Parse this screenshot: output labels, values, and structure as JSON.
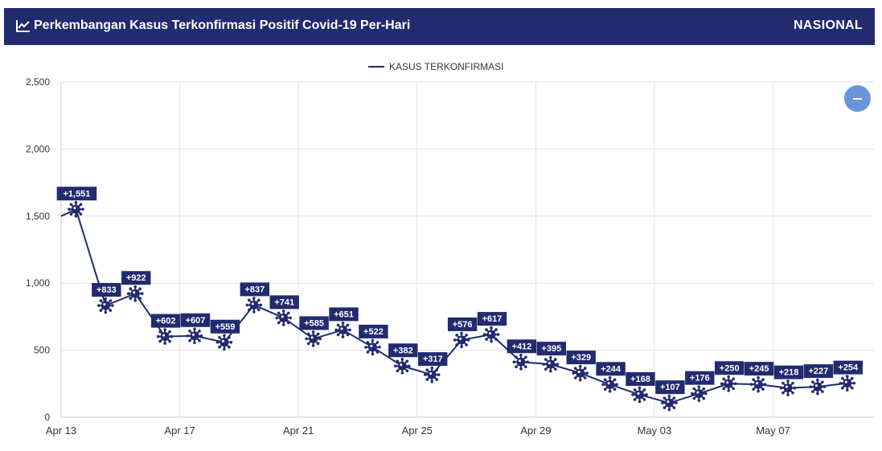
{
  "header": {
    "title": "Perkembangan Kasus Terkonfirmasi Positif Covid-19 Per-Hari",
    "scope": "NASIONAL"
  },
  "icons": {
    "title_icon": "line-chart-icon",
    "marker_icon": "virus-icon",
    "collapse_icon": "minus-icon"
  },
  "colors": {
    "header_bg": "#222b6e",
    "series": "#222b6e",
    "button": "#6b93dc"
  },
  "chart_data": {
    "type": "line",
    "legend": "KASUS TERKONFIRMASI",
    "legend_position": "top-center",
    "grid": true,
    "ylim": [
      0,
      2500
    ],
    "y_ticks": [
      "0",
      "500",
      "1,000",
      "1,500",
      "2,000",
      "2,500"
    ],
    "y_tick_values": [
      0,
      500,
      1000,
      1500,
      2000,
      2500
    ],
    "x_ticks": [
      "Apr 13",
      "Apr 17",
      "Apr 21",
      "Apr 25",
      "Apr 29",
      "May 03",
      "May 07"
    ],
    "x_tick_index": [
      0,
      4,
      8,
      12,
      16,
      20,
      24
    ],
    "x_range": [
      0,
      27.4
    ],
    "series": [
      {
        "name": "KASUS TERKONFIRMASI",
        "x": [
          0,
          0.5,
          1.5,
          2.5,
          3.5,
          4.5,
          5.5,
          6.5,
          7.5,
          8.5,
          9.5,
          10.5,
          11.5,
          12.5,
          13.5,
          14.5,
          15.5,
          16.5,
          17.5,
          18.5,
          19.5,
          20.5,
          21.5,
          22.5,
          23.5,
          24.5,
          25.5,
          26.5
        ],
        "values": [
          1500,
          1551,
          833,
          922,
          602,
          607,
          559,
          837,
          741,
          585,
          651,
          522,
          382,
          317,
          576,
          617,
          412,
          395,
          329,
          244,
          168,
          107,
          176,
          250,
          245,
          218,
          227,
          254
        ],
        "labels": [
          "",
          "+1,551",
          "+833",
          "+922",
          "+602",
          "+607",
          "+559",
          "+837",
          "+741",
          "+585",
          "+651",
          "+522",
          "+382",
          "+317",
          "+576",
          "+617",
          "+412",
          "+395",
          "+329",
          "+244",
          "+168",
          "+107",
          "+176",
          "+250",
          "+245",
          "+218",
          "+227",
          "+254"
        ]
      }
    ]
  }
}
